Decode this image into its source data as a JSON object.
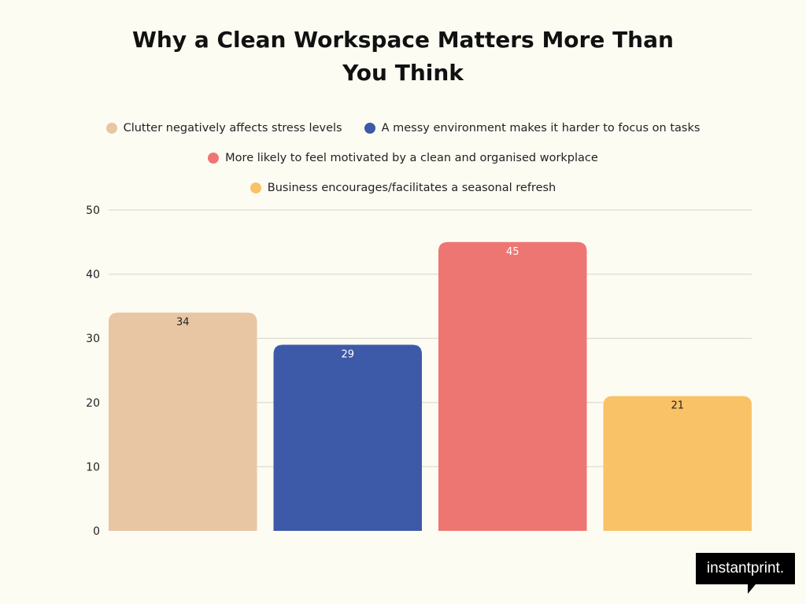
{
  "chart_data": {
    "type": "bar",
    "title": "Why a Clean Workspace Matters More Than You Think",
    "categories": [
      "Clutter negatively affects stress levels",
      "A messy environment makes it harder to focus on tasks",
      "More likely to feel motivated by a clean and organised workplace",
      "Business encourages/facilitates a seasonal refresh"
    ],
    "values": [
      34,
      29,
      45,
      21
    ],
    "colors": [
      "#e8c6a4",
      "#3d5aa8",
      "#ee7672",
      "#f9c266"
    ],
    "label_colors": [
      "#222222",
      "#ffffff",
      "#ffffff",
      "#222222"
    ],
    "ylim": [
      0,
      50
    ],
    "yticks": [
      0,
      10,
      20,
      30,
      40,
      50
    ],
    "grid": true,
    "legend_position": "top"
  },
  "title_lines": [
    "Why a Clean Workspace Matters More Than",
    "You Think"
  ],
  "logo": "instantprint."
}
